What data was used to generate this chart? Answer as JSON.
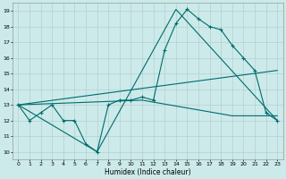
{
  "xlabel": "Humidex (Indice chaleur)",
  "xlim": [
    -0.5,
    23.5
  ],
  "ylim": [
    9.5,
    19.5
  ],
  "yticks": [
    10,
    11,
    12,
    13,
    14,
    15,
    16,
    17,
    18,
    19
  ],
  "xticks": [
    0,
    1,
    2,
    3,
    4,
    5,
    6,
    7,
    8,
    9,
    10,
    11,
    12,
    13,
    14,
    15,
    16,
    17,
    18,
    19,
    20,
    21,
    22,
    23
  ],
  "background_color": "#cceaea",
  "grid_color": "#b0c8c8",
  "line_color": "#006b6b",
  "line_main": {
    "x": [
      0,
      1,
      2,
      3,
      4,
      5,
      6,
      7,
      8,
      9,
      10,
      11,
      12,
      13,
      14,
      15,
      16,
      17,
      18,
      19,
      20,
      21,
      22,
      23
    ],
    "y": [
      13,
      12,
      12.5,
      13,
      12,
      12,
      10.5,
      10,
      13,
      13.3,
      13.3,
      13.5,
      13.3,
      16.5,
      18.2,
      19.1,
      18.5,
      18,
      17.8,
      16.8,
      16,
      15.2,
      12.5,
      12
    ]
  },
  "line_v": {
    "x": [
      0,
      7,
      14,
      23
    ],
    "y": [
      13,
      10,
      19.1,
      12
    ]
  },
  "line_flat1": {
    "x": [
      0,
      23
    ],
    "y": [
      13,
      15.2
    ]
  },
  "line_flat2": {
    "x": [
      0,
      11,
      19,
      23
    ],
    "y": [
      13,
      13.3,
      12.3,
      12.3
    ]
  }
}
